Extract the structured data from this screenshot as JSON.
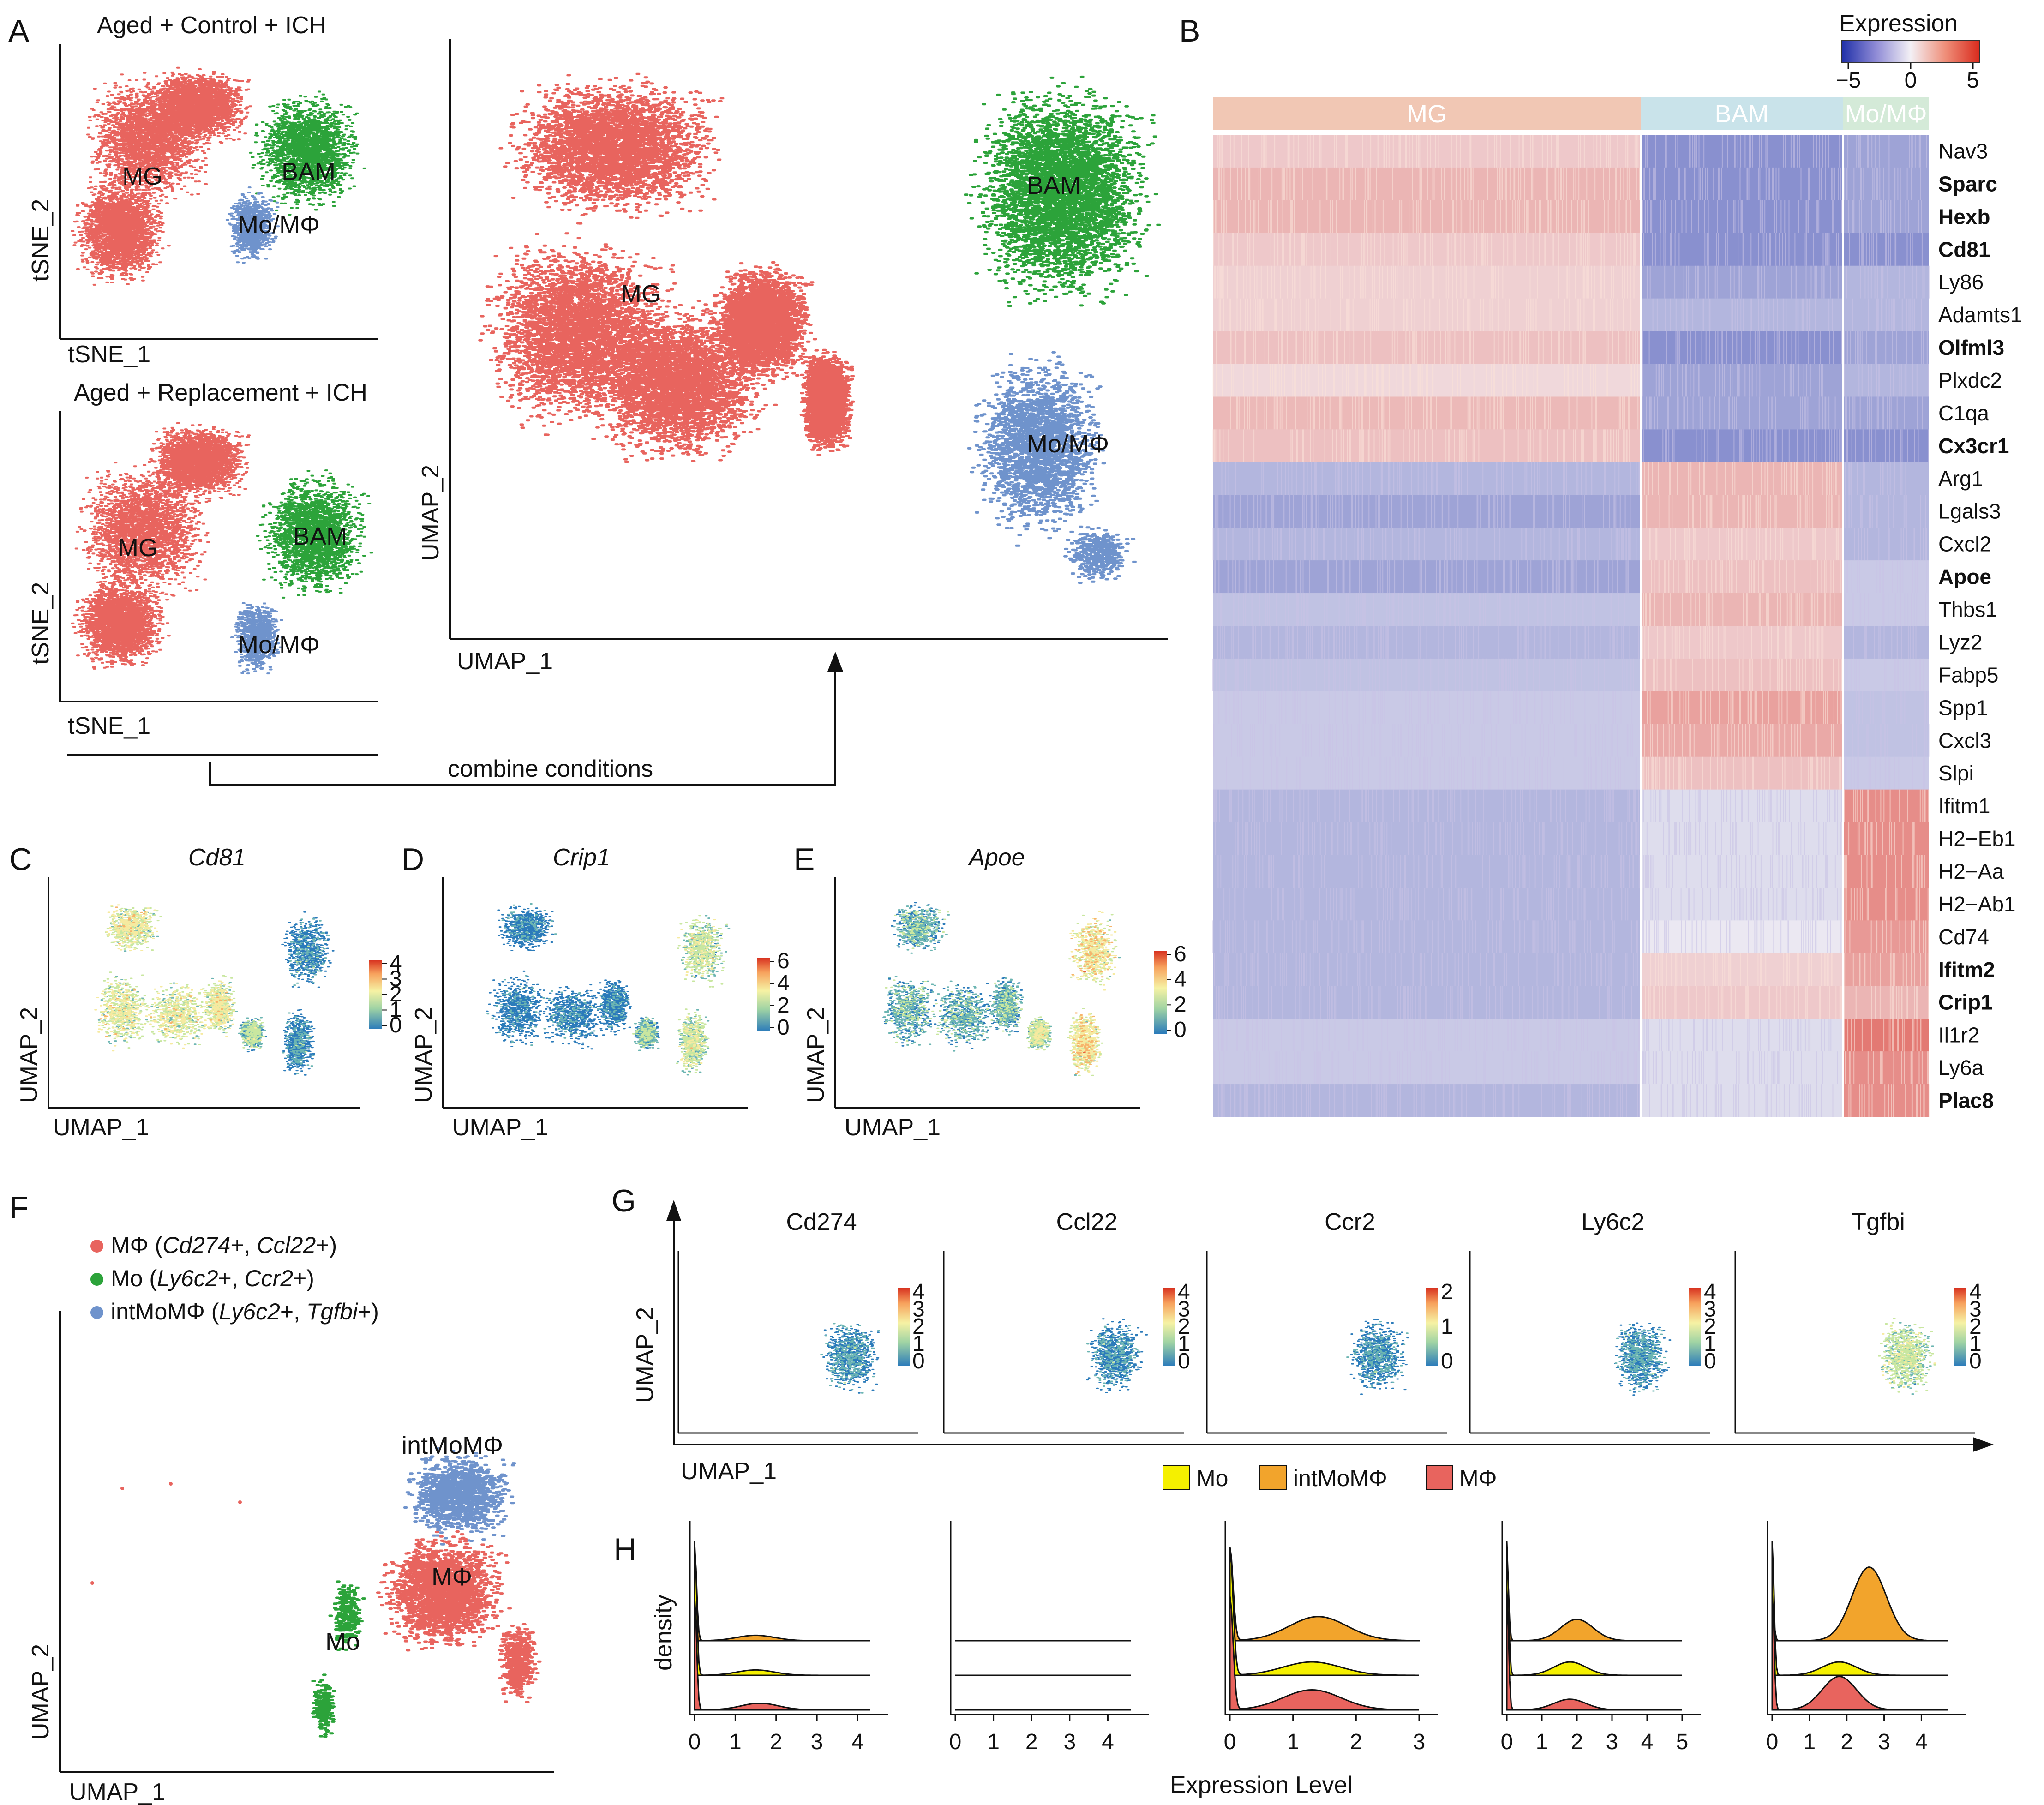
{
  "panels": {
    "A": {
      "label": "A",
      "top_title": "Aged + Control + ICH",
      "bottom_title": "Aged + Replacement + ICH",
      "tsne_xlabel": "tSNE_1",
      "tsne_ylabel": "tSNE_2",
      "umap_xlabel": "UMAP_1",
      "umap_ylabel": "UMAP_2",
      "clusters": [
        "MG",
        "BAM",
        "Mo/MΦ"
      ],
      "connector_label": "combine conditions"
    },
    "B": {
      "label": "B",
      "legend_title": "Expression",
      "legend_ticks": [
        "−5",
        "0",
        "5"
      ],
      "groups": [
        "MG",
        "BAM",
        "Mo/MΦ"
      ]
    },
    "C": {
      "label": "C",
      "gene": "Cd81",
      "xlabel": "UMAP_1",
      "ylabel": "UMAP_2",
      "ticks": [
        "4",
        "3",
        "2",
        "1",
        "0"
      ]
    },
    "D": {
      "label": "D",
      "gene": "Crip1",
      "xlabel": "UMAP_1",
      "ylabel": "UMAP_2",
      "ticks": [
        "6",
        "4",
        "2",
        "0"
      ]
    },
    "E": {
      "label": "E",
      "gene": "Apoe",
      "xlabel": "UMAP_1",
      "ylabel": "UMAP_2",
      "ticks": [
        "6",
        "4",
        "2",
        "0"
      ]
    },
    "F": {
      "label": "F",
      "legend": [
        {
          "pre": "MΦ (",
          "g1": "Cd274",
          "mid": "+, ",
          "g2": "Ccl22",
          "post": "+)",
          "color": "#e8645e"
        },
        {
          "pre": "Mo (",
          "g1": "Ly6c2",
          "mid": "+, ",
          "g2": "Ccr2",
          "post": "+)",
          "color": "#2ca33a"
        },
        {
          "pre": "intMoMΦ (",
          "g1": "Ly6c2",
          "mid": "+, ",
          "g2": "Tgfbi",
          "post": "+)",
          "color": "#6f93cc"
        }
      ],
      "cluster_labels": [
        "intMoMΦ",
        "MΦ",
        "Mo"
      ],
      "xlabel": "UMAP_1",
      "ylabel": "UMAP_2"
    },
    "G": {
      "label": "G",
      "genes": [
        "Cd274",
        "Ccl22",
        "Ccr2",
        "Ly6c2",
        "Tgfbi"
      ],
      "tick_sets": [
        [
          "4",
          "3",
          "2",
          "1",
          "0"
        ],
        [
          "4",
          "3",
          "2",
          "1",
          "0"
        ],
        [
          "2",
          "1",
          "0"
        ],
        [
          "4",
          "3",
          "2",
          "1",
          "0"
        ],
        [
          "4",
          "3",
          "2",
          "1",
          "0"
        ]
      ],
      "xlabel": "UMAP_1",
      "ylabel": "UMAP_2"
    },
    "H": {
      "label": "H",
      "legend": [
        {
          "name": "Mo",
          "color": "#f5f000"
        },
        {
          "name": "intMoMΦ",
          "color": "#f2a42c"
        },
        {
          "name": "MΦ",
          "color": "#e8645e"
        }
      ],
      "ylabel": "density",
      "xlabel": "Expression Level"
    }
  },
  "colors": {
    "mg": "#e8645e",
    "bam": "#2ca33a",
    "momp": "#6f93cc",
    "heat_low": "#1f2fa8",
    "heat_mid": "#f3f0f5",
    "heat_high": "#d92a1c",
    "spectral_low": "#2b7bba",
    "spectral_high": "#d7301f"
  },
  "chart_data": [
    {
      "type": "heatmap",
      "title": "Expression",
      "color_range": [
        -5,
        5
      ],
      "columns": [
        "MG",
        "BAM",
        "Mo/MΦ"
      ],
      "rows": [
        "Nav3",
        "Sparc",
        "Hexb",
        "Cd81",
        "Ly86",
        "Adamts1",
        "Olfml3",
        "Plxdc2",
        "C1qa",
        "Cx3cr1",
        "Arg1",
        "Lgals3",
        "Cxcl2",
        "Apoe",
        "Thbs1",
        "Lyz2",
        "Fabp5",
        "Spp1",
        "Cxcl3",
        "Slpi",
        "Ifitm1",
        "H2−Eb1",
        "H2−Aa",
        "H2−Ab1",
        "Cd74",
        "Ifitm2",
        "Crip1",
        "Il1r2",
        "Ly6a",
        "Plac8"
      ],
      "bold_rows": [
        "Sparc",
        "Hexb",
        "Cd81",
        "Olfml3",
        "Cx3cr1",
        "Apoe",
        "Ifitm2",
        "Crip1",
        "Plac8"
      ],
      "values": [
        [
          1.0,
          -2.5,
          -2.0
        ],
        [
          1.5,
          -2.5,
          -2.0
        ],
        [
          1.5,
          -2.5,
          -2.0
        ],
        [
          1.0,
          -2.5,
          -2.5
        ],
        [
          0.8,
          -2.0,
          -1.5
        ],
        [
          0.8,
          -1.5,
          -1.5
        ],
        [
          1.2,
          -2.5,
          -2.0
        ],
        [
          0.6,
          -2.0,
          -1.5
        ],
        [
          1.4,
          -2.0,
          -2.0
        ],
        [
          1.2,
          -2.5,
          -2.5
        ],
        [
          -1.5,
          1.5,
          -1.5
        ],
        [
          -2.0,
          1.5,
          -1.5
        ],
        [
          -1.5,
          1.0,
          -1.5
        ],
        [
          -2.0,
          1.2,
          -1.0
        ],
        [
          -1.2,
          1.5,
          -1.0
        ],
        [
          -1.5,
          1.0,
          -1.5
        ],
        [
          -1.2,
          1.2,
          -1.0
        ],
        [
          -1.0,
          2.0,
          -1.2
        ],
        [
          -1.0,
          1.8,
          -1.2
        ],
        [
          -1.0,
          1.2,
          -1.0
        ],
        [
          -1.5,
          -0.5,
          2.5
        ],
        [
          -1.5,
          -0.5,
          2.5
        ],
        [
          -1.5,
          -0.5,
          2.5
        ],
        [
          -1.5,
          -0.5,
          2.5
        ],
        [
          -1.5,
          -0.2,
          2.2
        ],
        [
          -1.5,
          0.8,
          2.0
        ],
        [
          -1.5,
          1.0,
          1.5
        ],
        [
          -1.0,
          -0.5,
          3.0
        ],
        [
          -1.0,
          -0.5,
          2.5
        ],
        [
          -1.5,
          -0.5,
          2.5
        ]
      ]
    },
    {
      "type": "ridge",
      "title": "Expression Level",
      "groups": [
        "intMoMΦ",
        "Mo",
        "MΦ"
      ],
      "panels": [
        {
          "gene": "Cd274",
          "x_ticks": [
            "0",
            "1",
            "2",
            "3",
            "4"
          ],
          "xmax": 4.3,
          "zero_peak": {
            "intMoMΦ": 0.7,
            "Mo": 1.0,
            "MΦ": 0.85
          },
          "bump": {
            "intMoMΦ": [
              1.5,
              0.04
            ],
            "Mo": [
              1.5,
              0.04
            ],
            "MΦ": [
              1.6,
              0.05
            ]
          }
        },
        {
          "gene": "Ccl22",
          "x_ticks": [
            "0",
            "1",
            "2",
            "3",
            "4"
          ],
          "xmax": 4.6,
          "zero_peak": {
            "intMoMΦ": 0,
            "Mo": 0,
            "MΦ": 0
          },
          "bump": {
            "intMoMΦ": [
              0,
              0
            ],
            "Mo": [
              0,
              0
            ],
            "MΦ": [
              0,
              0
            ]
          }
        },
        {
          "gene": "Ccr2",
          "x_ticks": [
            "0",
            "1",
            "2",
            "3"
          ],
          "xmax": 3.0,
          "zero_peak": {
            "intMoMΦ": 0.7,
            "Mo": 0.95,
            "MΦ": 0.85
          },
          "bump": {
            "intMoMΦ": [
              1.4,
              0.18
            ],
            "Mo": [
              1.3,
              0.1
            ],
            "MΦ": [
              1.3,
              0.15
            ]
          }
        },
        {
          "gene": "Ly6c2",
          "x_ticks": [
            "0",
            "1",
            "2",
            "3",
            "4",
            "5"
          ],
          "xmax": 5.0,
          "zero_peak": {
            "intMoMΦ": 0.6,
            "Mo": 1.0,
            "MΦ": 0.9
          },
          "bump": {
            "intMoMΦ": [
              2.0,
              0.16
            ],
            "Mo": [
              1.8,
              0.1
            ],
            "MΦ": [
              1.8,
              0.08
            ]
          }
        },
        {
          "gene": "Tgfbi",
          "x_ticks": [
            "0",
            "1",
            "2",
            "3",
            "4"
          ],
          "xmax": 4.7,
          "zero_peak": {
            "intMoMΦ": 0.25,
            "Mo": 1.0,
            "MΦ": 0.9
          },
          "bump": {
            "intMoMΦ": [
              2.6,
              0.55
            ],
            "Mo": [
              1.8,
              0.1
            ],
            "MΦ": [
              1.8,
              0.25
            ]
          }
        }
      ]
    }
  ]
}
